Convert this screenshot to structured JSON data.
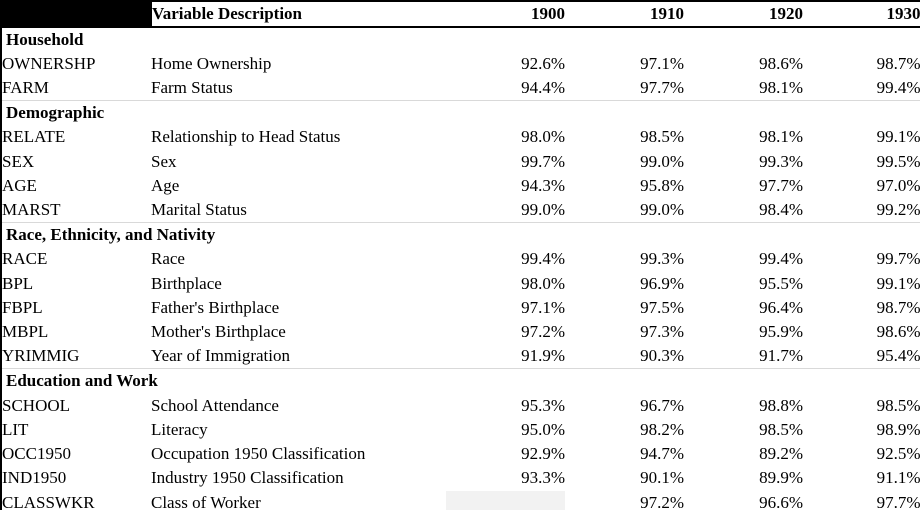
{
  "header": {
    "variable_description_label": "Variable Description",
    "years": [
      "1900",
      "1910",
      "1920",
      "1930"
    ]
  },
  "colors": {
    "header_corner_fill": "#000000",
    "header_border": "#000000",
    "section_divider": "#d9d9d9",
    "right_border": "#bfbfbf",
    "empty_cell_fill": "#f2f2f2",
    "text": "#000000"
  },
  "sections": [
    {
      "title": "Household",
      "rows": [
        {
          "code": "OWNERSHP",
          "description": "Home Ownership",
          "values": [
            "92.6%",
            "97.1%",
            "98.6%",
            "98.7%"
          ]
        },
        {
          "code": "FARM",
          "description": "Farm Status",
          "values": [
            "94.4%",
            "97.7%",
            "98.1%",
            "99.4%"
          ]
        }
      ]
    },
    {
      "title": "Demographic",
      "rows": [
        {
          "code": "RELATE",
          "description": "Relationship to Head Status",
          "values": [
            "98.0%",
            "98.5%",
            "98.1%",
            "99.1%"
          ]
        },
        {
          "code": "SEX",
          "description": "Sex",
          "values": [
            "99.7%",
            "99.0%",
            "99.3%",
            "99.5%"
          ]
        },
        {
          "code": "AGE",
          "description": "Age",
          "values": [
            "94.3%",
            "95.8%",
            "97.7%",
            "97.0%"
          ]
        },
        {
          "code": "MARST",
          "description": "Marital Status",
          "values": [
            "99.0%",
            "99.0%",
            "98.4%",
            "99.2%"
          ]
        }
      ]
    },
    {
      "title": "Race, Ethnicity, and Nativity",
      "rows": [
        {
          "code": "RACE",
          "description": "Race",
          "values": [
            "99.4%",
            "99.3%",
            "99.4%",
            "99.7%"
          ]
        },
        {
          "code": "BPL",
          "description": "Birthplace",
          "values": [
            "98.0%",
            "96.9%",
            "95.5%",
            "99.1%"
          ]
        },
        {
          "code": "FBPL",
          "description": "Father's Birthplace",
          "values": [
            "97.1%",
            "97.5%",
            "96.4%",
            "98.7%"
          ]
        },
        {
          "code": "MBPL",
          "description": "Mother's Birthplace",
          "values": [
            "97.2%",
            "97.3%",
            "95.9%",
            "98.6%"
          ]
        },
        {
          "code": "YRIMMIG",
          "description": "Year of Immigration",
          "values": [
            "91.9%",
            "90.3%",
            "91.7%",
            "95.4%"
          ]
        }
      ]
    },
    {
      "title": "Education and Work",
      "rows": [
        {
          "code": "SCHOOL",
          "description": "School Attendance",
          "values": [
            "95.3%",
            "96.7%",
            "98.8%",
            "98.5%"
          ]
        },
        {
          "code": "LIT",
          "description": "Literacy",
          "values": [
            "95.0%",
            "98.2%",
            "98.5%",
            "98.9%"
          ]
        },
        {
          "code": "OCC1950",
          "description": "Occupation 1950 Classification",
          "values": [
            "92.9%",
            "94.7%",
            "89.2%",
            "92.5%"
          ]
        },
        {
          "code": "IND1950",
          "description": "Industry 1950 Classification",
          "values": [
            "93.3%",
            "90.1%",
            "89.9%",
            "91.1%"
          ]
        },
        {
          "code": "CLASSWKR",
          "description": "Class of Worker",
          "values": [
            "",
            "97.2%",
            "96.6%",
            "97.7%"
          ]
        }
      ]
    }
  ]
}
